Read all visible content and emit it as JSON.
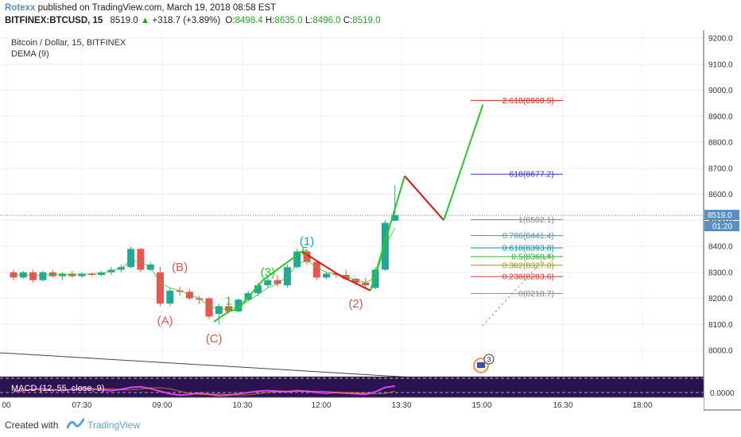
{
  "header": {
    "author": "Rotexx",
    "published_text": "published on TradingView.com, March 19, 2018 08:58 EST",
    "symbol": "BITFINEX:BTCUSD, 15",
    "price": "8519.0",
    "change": "+318.7 (+3.89%)",
    "o_label": "O:",
    "o_value": "8498.4",
    "h_label": "H:",
    "h_value": "8635.0",
    "l_label": "L:",
    "l_value": "8496.0",
    "c_label": "C:",
    "c_value": "8519.0"
  },
  "legend": {
    "title": "Bitcoin / Dollar, 15, BITFINEX",
    "indicator": "DEMA (9)",
    "macd": "MACD (12, 55, close, 9)"
  },
  "colors": {
    "up": "#26a69a",
    "down": "#ef5350",
    "wave_green": "#22cc22",
    "wave_red": "#dd1111",
    "label_red": "#e05555",
    "label_cyan": "#00aadd",
    "macd_bg": "#2a1350",
    "macd_line": "#e040fb",
    "price_tag": "#5a8fc4"
  },
  "chart_data": {
    "type": "candlestick",
    "x_ticks": [
      "00",
      "07:30",
      "09:00",
      "10:30",
      "12:00",
      "13:30",
      "15:00",
      "16:30",
      "18:00"
    ],
    "y_ticks": [
      8000,
      8100,
      8200,
      8300,
      8400,
      8500,
      8600,
      8700,
      8800,
      8900,
      9000,
      9100,
      9200
    ],
    "macd_tick": "0.0000",
    "ylim": [
      7920,
      9260
    ],
    "last_price": "8519.0",
    "countdown": "01:20",
    "candles": [
      [
        8300,
        8310,
        8270,
        8280
      ],
      [
        8280,
        8305,
        8275,
        8300
      ],
      [
        8300,
        8310,
        8260,
        8270
      ],
      [
        8270,
        8305,
        8265,
        8300
      ],
      [
        8300,
        8310,
        8280,
        8285
      ],
      [
        8285,
        8300,
        8270,
        8295
      ],
      [
        8295,
        8305,
        8280,
        8285
      ],
      [
        8285,
        8300,
        8280,
        8295
      ],
      [
        8295,
        8300,
        8285,
        8290
      ],
      [
        8290,
        8305,
        8285,
        8300
      ],
      [
        8300,
        8320,
        8290,
        8310
      ],
      [
        8310,
        8330,
        8300,
        8320
      ],
      [
        8320,
        8400,
        8315,
        8390
      ],
      [
        8390,
        8395,
        8300,
        8310
      ],
      [
        8310,
        8340,
        8305,
        8330
      ],
      [
        8300,
        8320,
        8170,
        8180
      ],
      [
        8180,
        8240,
        8170,
        8230
      ],
      [
        8230,
        8245,
        8210,
        8225
      ],
      [
        8225,
        8235,
        8195,
        8200
      ],
      [
        8200,
        8210,
        8180,
        8195
      ],
      [
        8200,
        8205,
        8120,
        8130
      ],
      [
        8140,
        8180,
        8100,
        8170
      ],
      [
        8170,
        8190,
        8140,
        8150
      ],
      [
        8150,
        8200,
        8145,
        8195
      ],
      [
        8195,
        8230,
        8190,
        8220
      ],
      [
        8220,
        8260,
        8210,
        8250
      ],
      [
        8250,
        8280,
        8240,
        8270
      ],
      [
        8270,
        8290,
        8245,
        8255
      ],
      [
        8250,
        8330,
        8240,
        8320
      ],
      [
        8320,
        8390,
        8315,
        8380
      ],
      [
        8380,
        8390,
        8330,
        8340
      ],
      [
        8340,
        8345,
        8270,
        8280
      ],
      [
        8280,
        8300,
        8275,
        8295
      ],
      [
        8295,
        8300,
        8280,
        8290
      ],
      [
        8290,
        8310,
        8270,
        8275
      ],
      [
        8275,
        8280,
        8250,
        8260
      ],
      [
        8260,
        8280,
        8240,
        8250
      ],
      [
        8240,
        8320,
        8235,
        8310
      ],
      [
        8310,
        8500,
        8305,
        8490
      ],
      [
        8498.4,
        8635,
        8496,
        8519
      ]
    ],
    "dema": [
      8290,
      8290,
      8288,
      8290,
      8291,
      8292,
      8292,
      8293,
      8294,
      8296,
      8305,
      8315,
      8345,
      8340,
      8320,
      8260,
      8240,
      8230,
      8215,
      8200,
      8170,
      8160,
      8158,
      8170,
      8190,
      8215,
      8240,
      8255,
      8285,
      8330,
      8345,
      8320,
      8300,
      8295,
      8285,
      8270,
      8260,
      8280,
      8400,
      8470
    ],
    "waves": [
      {
        "color": "green",
        "points": [
          [
            20.5,
            8110
          ],
          [
            22,
            8150
          ],
          [
            23,
            8160
          ],
          [
            25.5,
            8270
          ],
          [
            29.5,
            8380
          ]
        ]
      },
      {
        "color": "red",
        "points": [
          [
            29.5,
            8380
          ],
          [
            33.5,
            8285
          ],
          [
            36.5,
            8230
          ]
        ]
      },
      {
        "color": "green",
        "points": [
          [
            36.5,
            8230
          ],
          [
            40,
            8670
          ]
        ]
      },
      {
        "color": "red",
        "points": [
          [
            40,
            8670
          ],
          [
            44,
            8500
          ]
        ]
      },
      {
        "color": "green",
        "points": [
          [
            44,
            8500
          ],
          [
            48,
            8945
          ]
        ]
      }
    ],
    "wave_labels": [
      {
        "text": "(A)",
        "x": 15.5,
        "y": 8100,
        "color": "red"
      },
      {
        "text": "(B)",
        "x": 17,
        "y": 8305,
        "color": "red"
      },
      {
        "text": "(C)",
        "x": 20.5,
        "y": 8030,
        "color": "red"
      },
      {
        "text": "1",
        "x": 22,
        "y": 8175,
        "color": "green"
      },
      {
        "text": "(3)",
        "x": 26,
        "y": 8285,
        "color": "green"
      },
      {
        "text": "(1)",
        "x": 30,
        "y": 8405,
        "color": "cyan"
      },
      {
        "text": "5",
        "x": 29.8,
        "y": 8367,
        "color": "green"
      },
      {
        "text": "(2)",
        "x": 35,
        "y": 8165,
        "color": "red"
      }
    ],
    "fib_levels": [
      {
        "label": "2.618(8960.5)",
        "value": 8960.5,
        "color": "#dd2222"
      },
      {
        "label": "618(8677.2)",
        "value": 8677.2,
        "color": "#3333cc"
      },
      {
        "label": "1(8502.1)",
        "value": 8502.1,
        "color": "#888888"
      },
      {
        "label": "0.786(8441.4)",
        "value": 8441.4,
        "color": "#3399ff"
      },
      {
        "label": "0.618(8393.8)",
        "value": 8393.8,
        "color": "#009999"
      },
      {
        "label": "0.5(8360.4)",
        "value": 8360.4,
        "color": "#33aa33"
      },
      {
        "label": "0.382(8327.0)",
        "value": 8327.0,
        "color": "#999900"
      },
      {
        "label": "0.236(8283.6)",
        "value": 8283.6,
        "color": "#dd3333"
      },
      {
        "label": "0(8218.7)",
        "value": 8218.7,
        "color": "#888888"
      }
    ],
    "macd": [
      0.2,
      0.3,
      0.5,
      0.6,
      0.4,
      0.3,
      0.5,
      0.7,
      0.6,
      0.4,
      0.3,
      0.5,
      0.8,
      0.9,
      0.6,
      0.2,
      -0.2,
      -0.4,
      -0.3,
      -0.1,
      -0.3,
      -0.5,
      -0.4,
      -0.2,
      0.0,
      0.2,
      0.3,
      0.2,
      0.1,
      0.3,
      0.2,
      0.0,
      -0.1,
      0.0,
      -0.1,
      -0.2,
      -0.3,
      0.1,
      0.8,
      1.0
    ]
  },
  "footer": {
    "created_with": "Created with",
    "brand": "TradingView"
  },
  "events_badge": "3"
}
